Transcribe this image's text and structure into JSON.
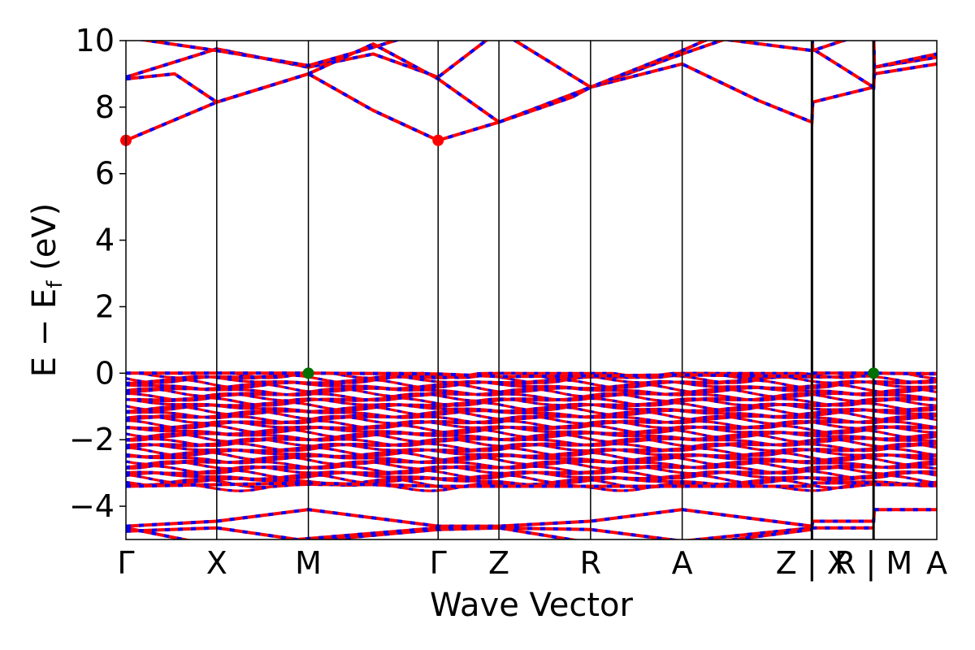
{
  "chart_data": {
    "type": "line",
    "subtype": "band-structure",
    "xlabel": "Wave Vector",
    "ylabel_main": "E − E",
    "ylabel_sub": "f",
    "ylabel_suffix": " (eV)",
    "ylim": [
      -5,
      10
    ],
    "yticks": [
      -4,
      -2,
      0,
      2,
      4,
      6,
      8,
      10
    ],
    "ytick_labels": [
      "−4",
      "−2",
      "0",
      "2",
      "4",
      "6",
      "8",
      "10"
    ],
    "grid": false,
    "kpoint_labels": [
      "Γ",
      "X",
      "M",
      "Γ",
      "Z",
      "R",
      "A",
      "Z | X",
      "R | M",
      "A"
    ],
    "kpoint_positions": [
      0,
      0.112,
      0.225,
      0.385,
      0.46,
      0.573,
      0.686,
      0.846,
      0.922,
      1.0
    ],
    "path_breaks": [
      0.846,
      0.922
    ],
    "colors": {
      "spin_up": "#ff0000",
      "spin_down": "#0000ff",
      "vbm": "#007000",
      "cbm": "#ff0000"
    },
    "conduction_band_minimum": {
      "energy": 7.0,
      "at_kpoints": [
        "Γ",
        "Γ"
      ]
    },
    "valence_band_maximum": {
      "energy": 0.0,
      "at_kpoints": [
        "M",
        "R | M"
      ]
    },
    "dense_valence_region": {
      "top": 0.0,
      "bottom": -3.4
    },
    "bands": [
      {
        "name": "cb1",
        "points": [
          [
            0,
            7.0
          ],
          [
            0.112,
            8.15
          ],
          [
            0.225,
            9.0
          ],
          [
            0.305,
            7.9
          ],
          [
            0.385,
            7.0
          ],
          [
            0.46,
            7.55
          ],
          [
            0.573,
            8.6
          ],
          [
            0.686,
            9.3
          ],
          [
            0.78,
            8.2
          ],
          [
            0.846,
            7.55
          ],
          [
            0.847,
            8.15
          ],
          [
            0.922,
            8.6
          ],
          [
            0.923,
            9.0
          ],
          [
            1.0,
            9.3
          ]
        ]
      },
      {
        "name": "cb2",
        "points": [
          [
            0,
            8.9
          ],
          [
            0.112,
            9.75
          ],
          [
            0.225,
            9.2
          ],
          [
            0.305,
            9.6
          ],
          [
            0.385,
            8.9
          ],
          [
            0.46,
            10.3
          ],
          [
            0.573,
            8.6
          ],
          [
            0.686,
            9.6
          ],
          [
            0.77,
            10.3
          ],
          [
            0.846,
            10.5
          ],
          [
            0.847,
            9.75
          ],
          [
            0.922,
            8.6
          ],
          [
            0.923,
            9.2
          ],
          [
            1.0,
            9.5
          ]
        ]
      },
      {
        "name": "cb3",
        "points": [
          [
            0,
            8.85
          ],
          [
            0.06,
            9.0
          ],
          [
            0.112,
            8.15
          ],
          [
            0.225,
            9.0
          ],
          [
            0.305,
            9.9
          ],
          [
            0.385,
            8.85
          ],
          [
            0.46,
            7.55
          ],
          [
            0.55,
            8.3
          ],
          [
            0.573,
            8.6
          ],
          [
            0.686,
            9.7
          ],
          [
            0.76,
            10.5
          ]
        ]
      },
      {
        "name": "cb4",
        "points": [
          [
            0,
            10.1
          ],
          [
            0.112,
            9.7
          ],
          [
            0.225,
            9.25
          ],
          [
            0.305,
            9.8
          ],
          [
            0.385,
            10.4
          ],
          [
            0.46,
            10.6
          ],
          [
            0.686,
            10.2
          ],
          [
            0.847,
            9.7
          ],
          [
            0.922,
            10.3
          ],
          [
            0.923,
            9.2
          ],
          [
            1.0,
            9.6
          ]
        ]
      },
      {
        "name": "vb-top",
        "points": [
          [
            0,
            0.0
          ],
          [
            0.225,
            0.0
          ],
          [
            0.385,
            -0.02
          ],
          [
            0.46,
            -0.1
          ],
          [
            0.573,
            -0.08
          ],
          [
            0.686,
            -0.05
          ],
          [
            0.846,
            -0.1
          ],
          [
            0.847,
            0.0
          ],
          [
            0.922,
            0.0
          ],
          [
            1.0,
            -0.02
          ]
        ]
      },
      {
        "name": "vb-bottom",
        "points": [
          [
            0,
            -3.4
          ],
          [
            0.225,
            -3.3
          ],
          [
            0.385,
            -3.4
          ],
          [
            0.46,
            -3.4
          ],
          [
            0.686,
            -3.4
          ],
          [
            0.846,
            -3.4
          ],
          [
            0.847,
            -3.3
          ],
          [
            0.922,
            -3.3
          ],
          [
            0.923,
            -3.35
          ],
          [
            1.0,
            -3.35
          ]
        ]
      },
      {
        "name": "lb1",
        "points": [
          [
            0,
            -4.6
          ],
          [
            0.112,
            -4.45
          ],
          [
            0.225,
            -4.1
          ],
          [
            0.385,
            -4.6
          ],
          [
            0.46,
            -4.6
          ],
          [
            0.573,
            -4.45
          ],
          [
            0.686,
            -4.1
          ],
          [
            0.846,
            -4.6
          ],
          [
            0.847,
            -4.45
          ],
          [
            0.922,
            -4.45
          ],
          [
            0.923,
            -4.1
          ],
          [
            1.0,
            -4.1
          ]
        ]
      },
      {
        "name": "lb2",
        "points": [
          [
            0,
            -4.75
          ],
          [
            0.112,
            -4.65
          ],
          [
            0.225,
            -5.05
          ],
          [
            0.385,
            -4.7
          ],
          [
            0.46,
            -4.65
          ],
          [
            0.573,
            -4.7
          ],
          [
            0.686,
            -5.05
          ],
          [
            0.846,
            -4.65
          ],
          [
            0.847,
            -4.65
          ],
          [
            0.922,
            -4.65
          ]
        ]
      },
      {
        "name": "lb3",
        "points": [
          [
            0,
            -4.65
          ],
          [
            0.112,
            -5.2
          ],
          [
            0.385,
            -4.65
          ],
          [
            0.46,
            -4.65
          ],
          [
            0.573,
            -5.1
          ],
          [
            0.686,
            -5.2
          ],
          [
            0.846,
            -4.7
          ]
        ]
      }
    ],
    "markers": [
      {
        "kind": "cbm",
        "x": 0,
        "y": 7.0
      },
      {
        "kind": "cbm",
        "x": 0.385,
        "y": 7.0
      },
      {
        "kind": "vbm",
        "x": 0.225,
        "y": 0.0
      },
      {
        "kind": "vbm",
        "x": 0.922,
        "y": 0.0
      }
    ]
  }
}
